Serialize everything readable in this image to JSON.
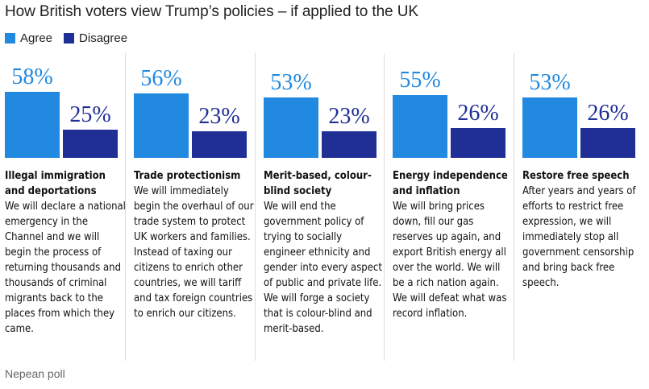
{
  "title": "How British voters view Trump’s policies – if applied to the UK",
  "source": "Nepean poll",
  "legend": [
    {
      "label": "Agree",
      "color": "#2189e0"
    },
    {
      "label": "Disagree",
      "color": "#1f2f96"
    }
  ],
  "chart_data": {
    "type": "bar",
    "title": "How British voters view Trump’s policies – if applied to the UK",
    "xlabel": "",
    "ylabel": "",
    "ylim": [
      0,
      100
    ],
    "categories": [
      "Illegal immigration and deportations",
      "Trade protectionism",
      "Merit-based, colour-blind society",
      "Energy independence and inflation",
      "Restore free speech"
    ],
    "series": [
      {
        "name": "Agree",
        "color": "#2189e0",
        "values": [
          58,
          56,
          53,
          55,
          53
        ]
      },
      {
        "name": "Disagree",
        "color": "#1f2f96",
        "values": [
          25,
          23,
          23,
          26,
          26
        ]
      }
    ],
    "value_labels": {
      "Agree": [
        "58%",
        "56%",
        "53%",
        "55%",
        "53%"
      ],
      "Disagree": [
        "25%",
        "23%",
        "23%",
        "26%",
        "26%"
      ]
    }
  },
  "panels": [
    {
      "heading": "Illegal immigration and deportations",
      "text": "We will declare a national emergency in the Channel and we will begin the process of returning thousands and thousands of criminal migrants back to the places from which they came."
    },
    {
      "heading": "Trade protectionism",
      "text": "We will immediately begin the overhaul of our trade system to protect UK workers and families. Instead of taxing our citizens to enrich other countries, we will tariff and tax foreign countries to enrich our citizens."
    },
    {
      "heading": "Merit-based, colour-blind society",
      "text": "We will end the government policy of trying to socially engineer ethnicity and gender into every aspect of public and private life. We will forge a society that is colour-blind and merit-based."
    },
    {
      "heading": "Energy independence and inflation",
      "text": "We will bring prices down, fill our gas reserves up again, and export British energy all over the world. We will be a rich nation again. We will defeat what was record inflation."
    },
    {
      "heading": "Restore free speech",
      "text": "After years and years of efforts to restrict free expression, we will immediately stop all government censorship and bring back free speech."
    }
  ]
}
